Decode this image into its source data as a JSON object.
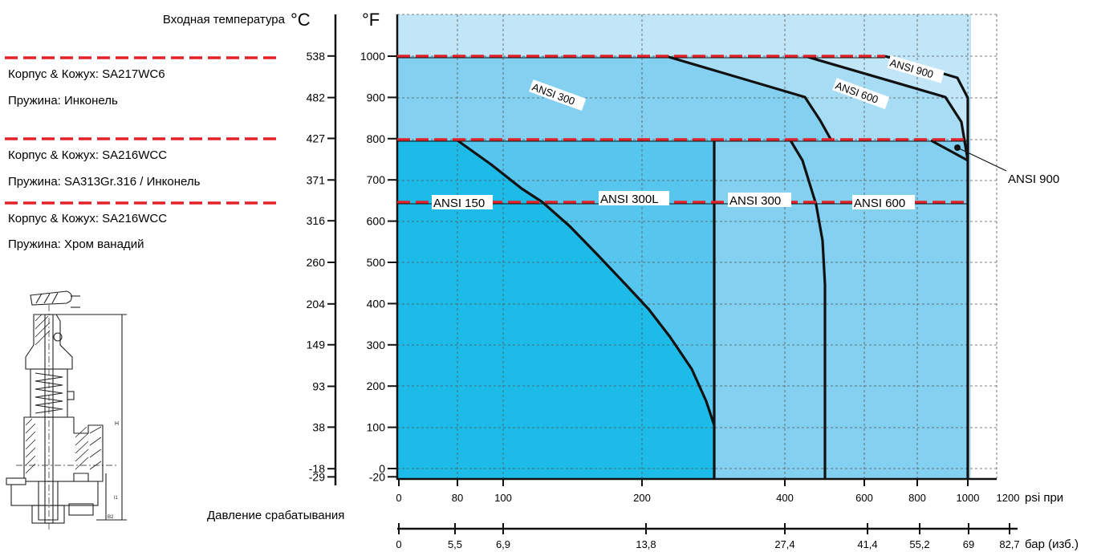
{
  "colors": {
    "zone_ansi150": "#1cbbe8",
    "zone_ansi300L": "#56c6ee",
    "zone_ansi300": "#84d0f1",
    "zone_ansi600": "#a7dcf5",
    "zone_ansi900": "#c0e6f8",
    "curve": "#111111",
    "limit_line": "#e22228",
    "grid": "#555555"
  },
  "header": {
    "inlet_temperature_label": "Входная температура",
    "celsius_unit": "°C",
    "fahrenheit_unit": "°F"
  },
  "materials": [
    {
      "body": "Корпус & Кожух: SA217WC6",
      "spring": "Пружина: Инконель"
    },
    {
      "body": "Корпус & Кожух: SA216WCC",
      "spring": "Пружина: SA313Gr.316 / Инконель"
    },
    {
      "body": "Корпус & Кожух: SA216WCC",
      "spring": "Пружина: Хром ванадий"
    }
  ],
  "footer": {
    "set_pressure_label": "Давление срабатывания",
    "psi_unit": "psi при",
    "bar_unit": "бар (изб.)"
  },
  "diagram_icon": "valve-cross-section",
  "chart_data": {
    "type": "area",
    "celsius_ticks": [
      "538",
      "482",
      "427",
      "371",
      "316",
      "260",
      "204",
      "149",
      "93",
      "38",
      "-18",
      "-29"
    ],
    "fahrenheit_ticks": [
      "1000",
      "900",
      "800",
      "700",
      "600",
      "500",
      "400",
      "300",
      "200",
      "100",
      "0",
      "-20"
    ],
    "psi_ticks": [
      "0",
      "80",
      "100",
      "200",
      "400",
      "600",
      "800",
      "1000",
      "1200"
    ],
    "bar_ticks": [
      "0",
      "5,5",
      "6,9",
      "13,8",
      "27,4",
      "41,4",
      "55,2",
      "69",
      "82,7"
    ],
    "temperature_limits_f": [
      1000,
      800,
      650
    ],
    "region_labels": [
      {
        "text": "ANSI 150"
      },
      {
        "text": "ANSI 300L"
      },
      {
        "text": "ANSI 300"
      },
      {
        "text": "ANSI 600"
      },
      {
        "text": "ANSI 300"
      },
      {
        "text": "ANSI 600"
      },
      {
        "text": "ANSI 900"
      },
      {
        "text": "ANSI 900"
      }
    ],
    "curves": [
      {
        "name": "ANSI 150",
        "points": [
          [
            80,
            800
          ],
          [
            110,
            740
          ],
          [
            135,
            680
          ],
          [
            165,
            600
          ],
          [
            195,
            500
          ],
          [
            225,
            400
          ],
          [
            250,
            300
          ],
          [
            270,
            200
          ],
          [
            285,
            100
          ]
        ]
      },
      {
        "name": "ANSI 300L",
        "points": [
          [
            285,
            -20
          ],
          [
            285,
            800
          ]
        ]
      },
      {
        "name": "ANSI 300",
        "points": [
          [
            230,
            1000
          ],
          [
            450,
            900
          ],
          [
            470,
            850
          ],
          [
            490,
            800
          ]
        ],
        "upper_band": true
      },
      {
        "name": "ANSI 300",
        "points": [
          [
            425,
            800
          ],
          [
            445,
            750
          ],
          [
            460,
            650
          ],
          [
            475,
            500
          ],
          [
            480,
            350
          ],
          [
            480,
            -20
          ]
        ]
      },
      {
        "name": "ANSI 600",
        "points": [
          [
            710,
            1000
          ],
          [
            920,
            900
          ],
          [
            950,
            800
          ],
          [
            1000,
            750
          ]
        ],
        "upper_band": true
      },
      {
        "name": "ANSI 600",
        "points": [
          [
            935,
            800
          ],
          [
            1000,
            800
          ]
        ]
      },
      {
        "name": "ANSI 900",
        "points": [
          [
            950,
            1000
          ],
          [
            1020,
            950
          ],
          [
            1040,
            900
          ],
          [
            1040,
            850
          ],
          [
            1045,
            800
          ],
          [
            1045,
            -20
          ]
        ]
      }
    ]
  }
}
